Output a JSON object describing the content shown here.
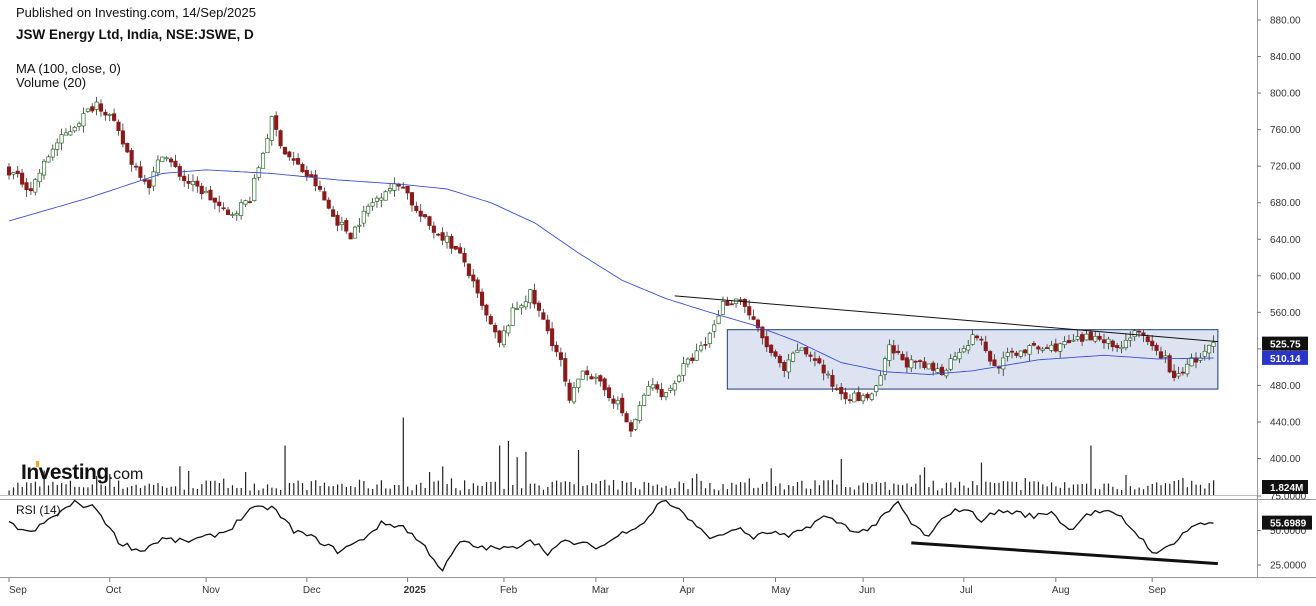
{
  "header": {
    "published": "Published on Investing.com, 14/Sep/2025",
    "title": "JSW Energy Ltd, India, NSE:JSWE, D",
    "ma_label": "MA (100, close, 0)",
    "volume_label": "Volume (20)",
    "rsi_label": "RSI (14)",
    "logo_main": "Investing",
    "logo_domain": ".com"
  },
  "colors": {
    "up_candle": "#ffffff",
    "down_candle": "#8b1a1a",
    "wick": "#333333",
    "ma_line": "#3b4fd8",
    "box_fill": "#dde3f0",
    "box_stroke": "#1f3b7a",
    "price_tag": "#111111",
    "ma_tag": "#2a35c9",
    "volume_bar": "#222222",
    "rsi_line": "#111111"
  },
  "chart_data": [
    {
      "type": "candlestick",
      "panel": "price",
      "y_axis_ticks": [
        "880.00",
        "840.00",
        "800.00",
        "760.00",
        "720.00",
        "680.00",
        "640.00",
        "600.00",
        "560.00",
        "520.00",
        "480.00",
        "440.00",
        "400.00"
      ],
      "ylim": [
        380,
        890
      ],
      "x_tick_labels": [
        "Sep",
        "Oct",
        "Nov",
        "Dec",
        "2025",
        "Feb",
        "Mar",
        "Apr",
        "May",
        "Jun",
        "Jul",
        "Aug",
        "Sep"
      ],
      "last_price_label": "525.75",
      "last_price": 525.75,
      "ma_value_label": "510.14",
      "ma_value": 510.14,
      "close_anchors": [
        [
          0,
          715
        ],
        [
          5,
          695
        ],
        [
          10,
          740
        ],
        [
          15,
          765
        ],
        [
          20,
          790
        ],
        [
          23,
          775
        ],
        [
          28,
          725
        ],
        [
          32,
          700
        ],
        [
          35,
          735
        ],
        [
          40,
          705
        ],
        [
          45,
          690
        ],
        [
          50,
          665
        ],
        [
          55,
          685
        ],
        [
          60,
          770
        ],
        [
          63,
          735
        ],
        [
          66,
          720
        ],
        [
          70,
          700
        ],
        [
          74,
          665
        ],
        [
          78,
          645
        ],
        [
          82,
          675
        ],
        [
          86,
          695
        ],
        [
          90,
          700
        ],
        [
          93,
          670
        ],
        [
          97,
          650
        ],
        [
          100,
          640
        ],
        [
          104,
          615
        ],
        [
          108,
          565
        ],
        [
          112,
          525
        ],
        [
          115,
          560
        ],
        [
          119,
          580
        ],
        [
          123,
          540
        ],
        [
          126,
          505
        ],
        [
          128,
          460
        ],
        [
          131,
          500
        ],
        [
          135,
          480
        ],
        [
          139,
          460
        ],
        [
          142,
          430
        ],
        [
          146,
          480
        ],
        [
          150,
          470
        ],
        [
          154,
          500
        ],
        [
          159,
          525
        ],
        [
          163,
          570
        ],
        [
          167,
          575
        ],
        [
          171,
          540
        ],
        [
          174,
          515
        ],
        [
          177,
          495
        ],
        [
          180,
          520
        ],
        [
          184,
          510
        ],
        [
          188,
          480
        ],
        [
          191,
          470
        ],
        [
          195,
          465
        ],
        [
          198,
          475
        ],
        [
          201,
          520
        ],
        [
          205,
          505
        ],
        [
          209,
          500
        ],
        [
          213,
          495
        ],
        [
          217,
          520
        ],
        [
          221,
          535
        ],
        [
          225,
          500
        ],
        [
          229,
          515
        ],
        [
          233,
          520
        ],
        [
          237,
          520
        ],
        [
          241,
          525
        ],
        [
          245,
          530
        ],
        [
          249,
          535
        ],
        [
          253,
          520
        ],
        [
          257,
          540
        ],
        [
          261,
          520
        ],
        [
          264,
          510
        ],
        [
          266,
          485
        ],
        [
          269,
          505
        ],
        [
          272,
          510
        ],
        [
          275,
          525
        ]
      ],
      "ma_anchors": [
        [
          0,
          660
        ],
        [
          18,
          685
        ],
        [
          35,
          712
        ],
        [
          45,
          716
        ],
        [
          60,
          712
        ],
        [
          75,
          705
        ],
        [
          90,
          700
        ],
        [
          100,
          695
        ],
        [
          110,
          680
        ],
        [
          120,
          658
        ],
        [
          130,
          625
        ],
        [
          140,
          595
        ],
        [
          150,
          575
        ],
        [
          160,
          560
        ],
        [
          170,
          546
        ],
        [
          180,
          528
        ],
        [
          190,
          505
        ],
        [
          200,
          495
        ],
        [
          210,
          492
        ],
        [
          220,
          496
        ],
        [
          235,
          508
        ],
        [
          250,
          513
        ],
        [
          262,
          509
        ],
        [
          275,
          510
        ]
      ],
      "consolidation_box": {
        "x_start": 164,
        "x_end": 276,
        "y_top": 541,
        "y_bottom": 476
      },
      "trendline": {
        "x1": 152,
        "y1": 578,
        "x2": 276,
        "y2": 528
      }
    },
    {
      "type": "bar",
      "panel": "volume",
      "last_volume_label": "1.824M",
      "spike_days": [
        [
          63,
          0.55
        ],
        [
          90,
          0.86
        ],
        [
          112,
          0.55
        ],
        [
          114,
          0.6
        ],
        [
          116,
          0.42
        ],
        [
          118,
          0.48
        ],
        [
          130,
          0.5
        ],
        [
          190,
          0.4
        ],
        [
          222,
          0.36
        ],
        [
          247,
          0.55
        ]
      ]
    },
    {
      "type": "line",
      "panel": "rsi",
      "y_axis_ticks": [
        "75.0000",
        "50.0000",
        "25.0000"
      ],
      "ylim": [
        18,
        82
      ],
      "last_value_label": "55.6989",
      "last_value": 55.7,
      "rsi_anchors": [
        [
          0,
          55
        ],
        [
          5,
          48
        ],
        [
          10,
          60
        ],
        [
          15,
          70
        ],
        [
          20,
          66
        ],
        [
          25,
          42
        ],
        [
          30,
          35
        ],
        [
          35,
          44
        ],
        [
          40,
          42
        ],
        [
          45,
          45
        ],
        [
          50,
          50
        ],
        [
          55,
          65
        ],
        [
          60,
          67
        ],
        [
          65,
          50
        ],
        [
          70,
          44
        ],
        [
          75,
          35
        ],
        [
          80,
          42
        ],
        [
          85,
          55
        ],
        [
          90,
          53
        ],
        [
          95,
          38
        ],
        [
          99,
          21
        ],
        [
          103,
          42
        ],
        [
          107,
          38
        ],
        [
          111,
          37
        ],
        [
          115,
          37
        ],
        [
          119,
          44
        ],
        [
          123,
          34
        ],
        [
          127,
          42
        ],
        [
          131,
          40
        ],
        [
          135,
          38
        ],
        [
          141,
          50
        ],
        [
          145,
          56
        ],
        [
          149,
          72
        ],
        [
          153,
          66
        ],
        [
          157,
          52
        ],
        [
          161,
          44
        ],
        [
          166,
          52
        ],
        [
          170,
          45
        ],
        [
          174,
          49
        ],
        [
          178,
          45
        ],
        [
          182,
          52
        ],
        [
          186,
          60
        ],
        [
          190,
          55
        ],
        [
          194,
          48
        ],
        [
          198,
          55
        ],
        [
          203,
          70
        ],
        [
          206,
          55
        ],
        [
          210,
          45
        ],
        [
          214,
          62
        ],
        [
          218,
          66
        ],
        [
          222,
          58
        ],
        [
          226,
          64
        ],
        [
          230,
          63
        ],
        [
          234,
          60
        ],
        [
          238,
          64
        ],
        [
          242,
          50
        ],
        [
          246,
          62
        ],
        [
          250,
          64
        ],
        [
          254,
          59
        ],
        [
          258,
          46
        ],
        [
          262,
          32
        ],
        [
          266,
          42
        ],
        [
          270,
          53
        ],
        [
          275,
          56
        ]
      ],
      "divergence_line": {
        "x1": 206,
        "y1": 41,
        "x2": 276,
        "y2": 26
      }
    }
  ]
}
